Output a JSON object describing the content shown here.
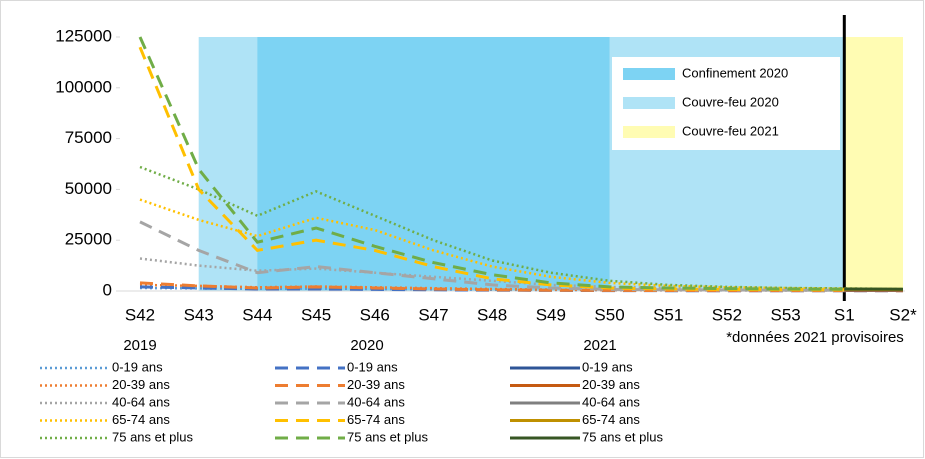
{
  "chart_data": {
    "type": "line",
    "categories": [
      "S42",
      "S43",
      "S44",
      "S45",
      "S46",
      "S47",
      "S48",
      "S49",
      "S50",
      "S51",
      "S52",
      "S53",
      "S1",
      "S2*"
    ],
    "ylim": [
      0,
      125000
    ],
    "yticks": [
      0,
      25000,
      50000,
      75000,
      100000,
      125000
    ],
    "note": "*données 2021 provisoires",
    "marker_line": "S1",
    "bands": [
      {
        "name": "Couvre-feu 2020",
        "color": "#afe3f6",
        "from": "S43",
        "to": "S1"
      },
      {
        "name": "Confinement 2020",
        "color": "#7dd3f3",
        "from": "S44",
        "to": "S50"
      },
      {
        "name": "Couvre-feu 2021",
        "color": "#fffcb3",
        "from": "S1",
        "to": "S2*"
      }
    ],
    "legend_bands": [
      "Confinement 2020",
      "Couvre-feu 2020",
      "Couvre-feu 2021"
    ],
    "groups": [
      {
        "name": "2019",
        "dash": "dotted",
        "series": [
          {
            "name": "0-19 ans",
            "color": "#5b9bd5",
            "values": [
              1500,
              1300,
              1100,
              1200,
              1000,
              800,
              600,
              500,
              400,
              300,
              300,
              300,
              300,
              300
            ]
          },
          {
            "name": "20-39 ans",
            "color": "#ed7d31",
            "values": [
              3000,
              2500,
              1800,
              2200,
              1800,
              1400,
              1000,
              700,
              500,
              400,
              350,
              300,
              300,
              300
            ]
          },
          {
            "name": "40-64 ans",
            "color": "#a5a5a5",
            "values": [
              16000,
              12500,
              10000,
              11000,
              9000,
              7000,
              5000,
              3000,
              2000,
              1500,
              1200,
              1000,
              900,
              800
            ]
          },
          {
            "name": "65-74 ans",
            "color": "#ffc000",
            "values": [
              45000,
              35000,
              27000,
              36000,
              30000,
              20000,
              12000,
              7000,
              4000,
              2500,
              1800,
              1500,
              1200,
              1000
            ]
          },
          {
            "name": "75 ans et plus",
            "color": "#70ad47",
            "values": [
              61000,
              50000,
              37000,
              49000,
              37000,
              25000,
              15000,
              9000,
              5000,
              3000,
              2000,
              1500,
              1300,
              1000
            ]
          }
        ]
      },
      {
        "name": "2020",
        "dash": "dashed",
        "series": [
          {
            "name": "0-19 ans",
            "color": "#4472c4",
            "values": [
              2000,
              1500,
              1000,
              1000,
              800,
              600,
              400,
              300,
              200,
              150,
              150,
              100,
              100,
              100
            ]
          },
          {
            "name": "20-39 ans",
            "color": "#ed7d31",
            "values": [
              4000,
              2500,
              1500,
              2000,
              1500,
              1000,
              600,
              400,
              300,
              250,
              200,
              200,
              200,
              150
            ]
          },
          {
            "name": "40-64 ans",
            "color": "#a5a5a5",
            "values": [
              34000,
              20000,
              9000,
              12000,
              9000,
              6000,
              3000,
              1500,
              800,
              600,
              500,
              400,
              400,
              300
            ]
          },
          {
            "name": "65-74 ans",
            "color": "#ffc000",
            "values": [
              120000,
              50000,
              20000,
              25000,
              20000,
              12000,
              6000,
              3000,
              1500,
              1000,
              800,
              700,
              600,
              500
            ]
          },
          {
            "name": "75 ans et plus",
            "color": "#70ad47",
            "values": [
              125000,
              60000,
              24000,
              31000,
              22000,
              14000,
              8000,
              4000,
              2000,
              1500,
              1200,
              1000,
              900,
              800
            ]
          }
        ]
      },
      {
        "name": "2021",
        "dash": "solid",
        "series": [
          {
            "name": "0-19 ans",
            "color": "#2f5597",
            "values": [
              null,
              null,
              null,
              null,
              null,
              null,
              null,
              null,
              null,
              null,
              null,
              null,
              300,
              300
            ]
          },
          {
            "name": "20-39 ans",
            "color": "#c55a11",
            "values": [
              null,
              null,
              null,
              null,
              null,
              null,
              null,
              null,
              null,
              null,
              null,
              null,
              400,
              400
            ]
          },
          {
            "name": "40-64 ans",
            "color": "#7f7f7f",
            "values": [
              null,
              null,
              null,
              null,
              null,
              null,
              null,
              null,
              null,
              null,
              null,
              null,
              600,
              600
            ]
          },
          {
            "name": "65-74 ans",
            "color": "#bf9000",
            "values": [
              null,
              null,
              null,
              null,
              null,
              null,
              null,
              null,
              null,
              null,
              null,
              null,
              800,
              700
            ]
          },
          {
            "name": "75 ans et plus",
            "color": "#375623",
            "values": [
              null,
              null,
              null,
              null,
              null,
              null,
              null,
              null,
              null,
              null,
              null,
              null,
              1000,
              900
            ]
          }
        ]
      }
    ]
  }
}
